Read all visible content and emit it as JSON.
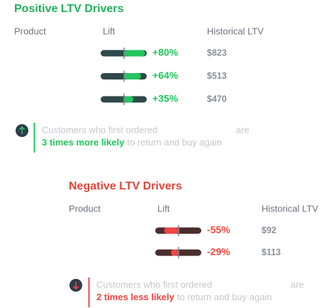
{
  "positive": {
    "title": "Positive LTV Drivers",
    "headers": [
      "Product",
      "Lift",
      "Historical LTV"
    ],
    "rows": [
      {
        "lift": {
          "value": 80,
          "label": "+80%"
        },
        "historical_ltv": "$823"
      },
      {
        "lift": {
          "value": 64,
          "label": "+64%"
        },
        "historical_ltv": "$513"
      },
      {
        "lift": {
          "value": 35,
          "label": "+35%"
        },
        "historical_ltv": "$470"
      }
    ],
    "callout": {
      "line1_start": "Customers who first ordered",
      "line1_end": "are",
      "emphasis": "3 times more likely",
      "rest": "to return and buy again"
    }
  },
  "negative": {
    "title": "Negative LTV Drivers",
    "headers": [
      "Product",
      "Lift",
      "Historical LTV"
    ],
    "rows": [
      {
        "lift": {
          "value": -55,
          "label": "-55%"
        },
        "historical_ltv": "$92"
      },
      {
        "lift": {
          "value": -29,
          "label": "-29%"
        },
        "historical_ltv": "$113"
      }
    ],
    "callout": {
      "line1_start": "Customers who first ordered",
      "line1_end": "are",
      "emphasis": "2 times less likely",
      "rest": "to return and buy again"
    }
  }
}
